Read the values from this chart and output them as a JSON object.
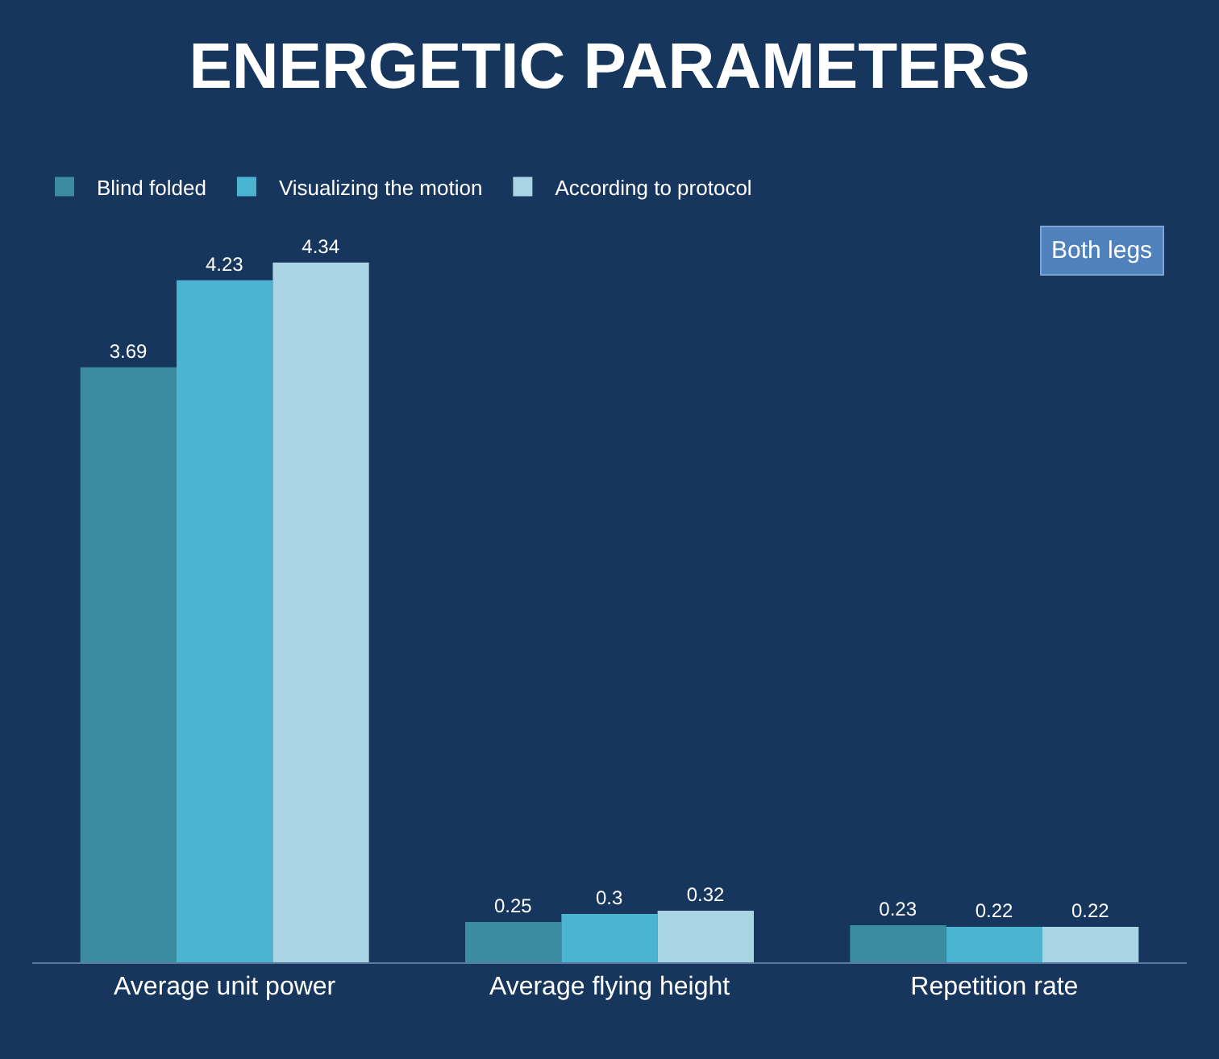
{
  "chart_data": {
    "type": "bar",
    "title": "ENERGETIC PARAMETERS",
    "categories": [
      "Average unit power",
      "Average flying height",
      "Repetition rate"
    ],
    "series": [
      {
        "name": "Blind folded",
        "color": "#3b8ca0",
        "values": [
          3.69,
          0.25,
          0.23
        ]
      },
      {
        "name": "Visualizing the motion",
        "color": "#4bb4d1",
        "values": [
          4.23,
          0.3,
          0.22
        ]
      },
      {
        "name": "According to protocol",
        "color": "#aad3e3",
        "values": [
          4.34,
          0.32,
          0.22
        ]
      }
    ],
    "annotations": [
      "Both legs"
    ],
    "data_labels": true,
    "legend": "top left",
    "grid": false
  }
}
